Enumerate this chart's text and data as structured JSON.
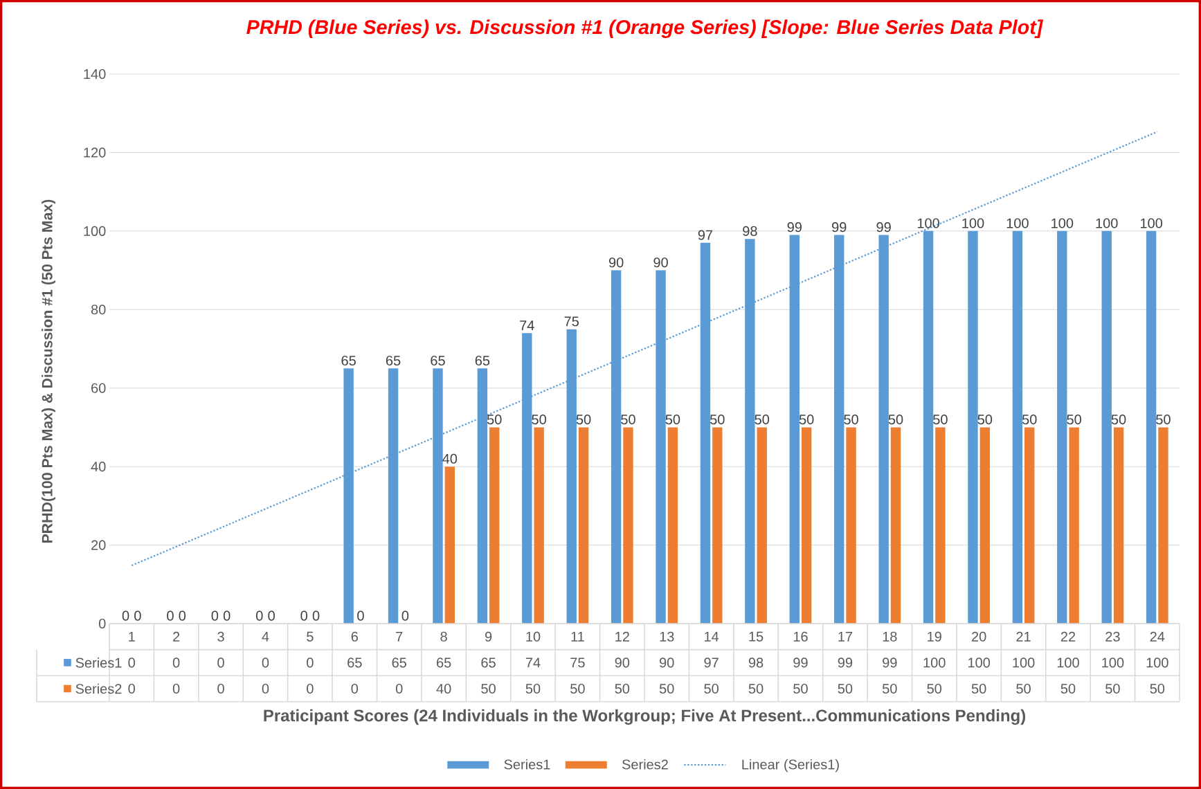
{
  "chart_data": {
    "type": "bar",
    "title": "PRHD (Blue Series) vs. Discussion #1 (Orange Series) [Slope: Blue Series Data Plot]",
    "xlabel": "Praticipant Scores (24 Individuals in the Workgroup; Five At Present...Communications Pending)",
    "ylabel": "PRHD(100 Pts Max) & Discussion #1 (50 Pts Max)",
    "categories": [
      "1",
      "2",
      "3",
      "4",
      "5",
      "6",
      "7",
      "8",
      "9",
      "10",
      "11",
      "12",
      "13",
      "14",
      "15",
      "16",
      "17",
      "18",
      "19",
      "20",
      "21",
      "22",
      "23",
      "24"
    ],
    "series": [
      {
        "name": "Series1",
        "color": "#5b9bd5",
        "values": [
          0,
          0,
          0,
          0,
          0,
          65,
          65,
          65,
          65,
          74,
          75,
          90,
          90,
          97,
          98,
          99,
          99,
          99,
          100,
          100,
          100,
          100,
          100,
          100
        ],
        "value_labels": [
          "0",
          "0",
          "0",
          "0",
          "0",
          "65",
          "65",
          "65",
          "65",
          "74",
          "75",
          "90",
          "90",
          "97",
          "98",
          "99",
          "99",
          "99",
          "100",
          "100",
          "100",
          "100",
          "100",
          "100"
        ]
      },
      {
        "name": "Series2",
        "color": "#ed7d31",
        "values": [
          0,
          0,
          0,
          0,
          0,
          0,
          0,
          40,
          50,
          50,
          50,
          50,
          50,
          50,
          50,
          50,
          50,
          50,
          50,
          50,
          50,
          50,
          50,
          50
        ],
        "value_labels": [
          "0",
          "0",
          "0",
          "0",
          "0",
          "0",
          "0",
          "40",
          "50",
          "50",
          "50",
          "50",
          "50",
          "50",
          "50",
          "50",
          "50",
          "50",
          "50",
          "50",
          "50",
          "50",
          "50",
          "50"
        ]
      },
      {
        "name": "Linear (Series1)",
        "type": "line",
        "color": "#5b9bd5",
        "x": [
          "1",
          "24"
        ],
        "values": [
          14.8,
          125.3
        ],
        "line_style": "dotted",
        "marker": "none"
      }
    ],
    "ylim": [
      0,
      140
    ],
    "yticks": [
      0,
      20,
      40,
      60,
      80,
      100,
      120,
      140
    ],
    "grid": "y",
    "legend": "bottom"
  }
}
